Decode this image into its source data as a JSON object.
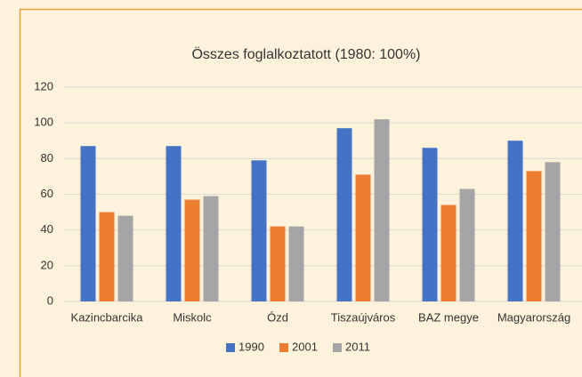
{
  "chart_data": {
    "type": "bar",
    "title": "Összes foglalkoztatott (1980: 100%)",
    "categories": [
      "Kazincbarcika",
      "Miskolc",
      "Ózd",
      "Tiszaújváros",
      "BAZ megye",
      "Magyarország"
    ],
    "series": [
      {
        "name": "1990",
        "color": "#4472c4",
        "values": [
          87,
          87,
          79,
          97,
          86,
          90
        ]
      },
      {
        "name": "2001",
        "color": "#ed7d31",
        "values": [
          50,
          57,
          42,
          71,
          54,
          73
        ]
      },
      {
        "name": "2011",
        "color": "#a5a5a5",
        "values": [
          48,
          59,
          42,
          102,
          63,
          78
        ]
      }
    ],
    "ylim": [
      0,
      120
    ],
    "yticks": [
      0,
      20,
      40,
      60,
      80,
      100,
      120
    ],
    "grid": true,
    "legend": "bottom"
  }
}
